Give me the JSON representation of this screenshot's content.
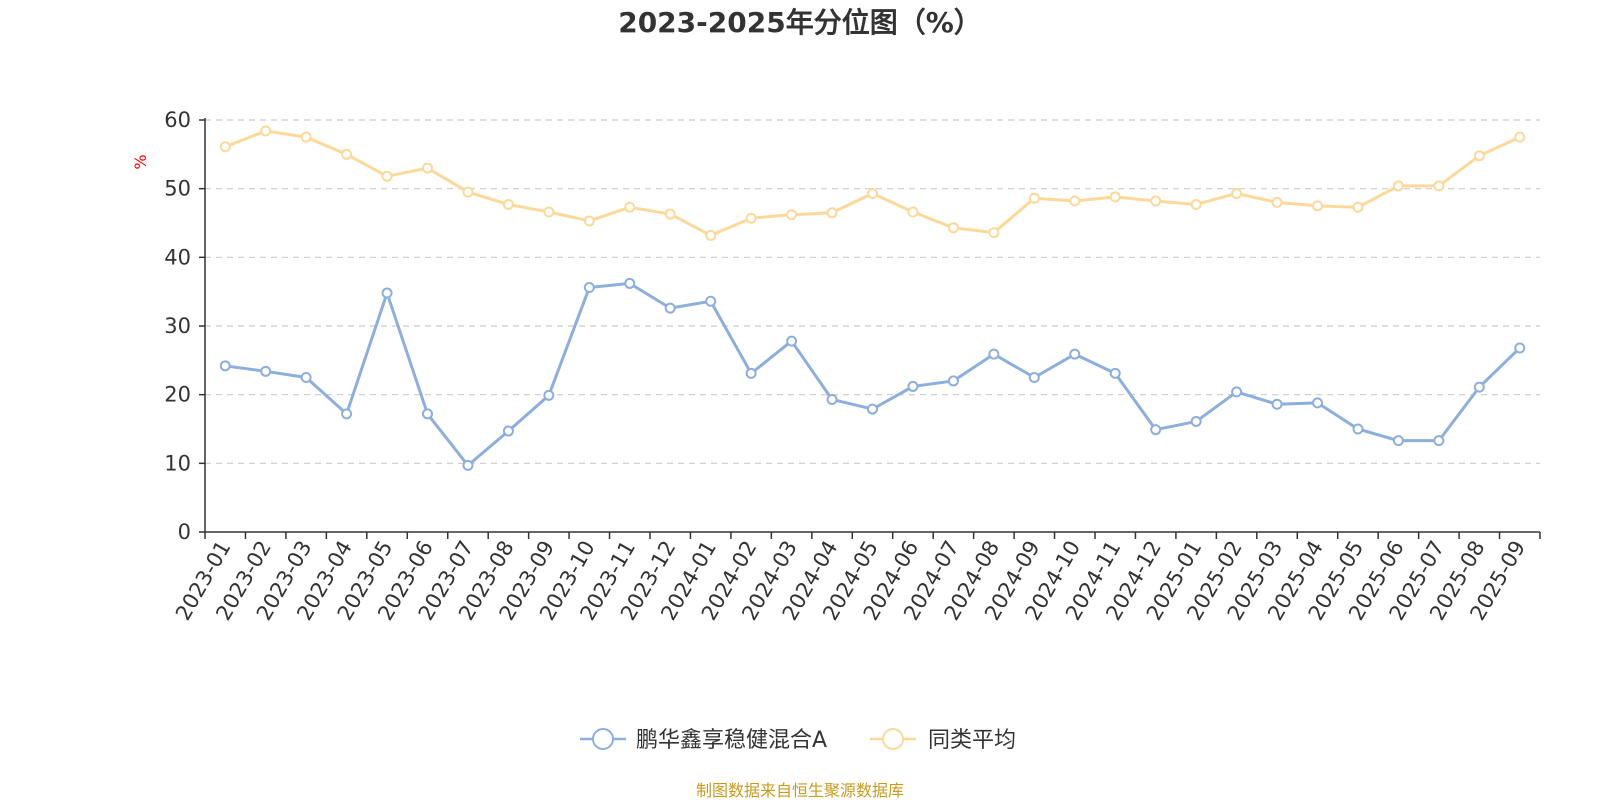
{
  "chart_data": {
    "type": "line",
    "title": "2023-2025年分位图（%）",
    "ylabel": "%",
    "ylim": [
      0,
      60
    ],
    "yticks": [
      0,
      10,
      20,
      30,
      40,
      50,
      60
    ],
    "grid": true,
    "legend_position": "bottom-center",
    "categories": [
      "2023-01",
      "2023-02",
      "2023-03",
      "2023-04",
      "2023-05",
      "2023-06",
      "2023-07",
      "2023-08",
      "2023-09",
      "2023-10",
      "2023-11",
      "2023-12",
      "2024-01",
      "2024-02",
      "2024-03",
      "2024-04",
      "2024-05",
      "2024-06",
      "2024-07",
      "2024-08",
      "2024-09",
      "2024-10",
      "2024-11",
      "2024-12",
      "2025-01",
      "2025-02",
      "2025-03",
      "2025-04",
      "2025-05",
      "2025-06",
      "2025-07",
      "2025-08",
      "2025-09"
    ],
    "series": [
      {
        "name": "鹏华鑫享稳健混合A",
        "color": "#8eaedc",
        "values": [
          24.2,
          23.4,
          22.5,
          17.2,
          34.8,
          17.2,
          9.7,
          14.7,
          19.9,
          35.6,
          36.2,
          32.6,
          33.6,
          23.1,
          27.8,
          19.3,
          17.9,
          21.2,
          22.0,
          25.9,
          22.5,
          25.9,
          23.1,
          14.9,
          16.1,
          20.4,
          18.6,
          18.8,
          15.0,
          13.3,
          13.3,
          21.1,
          26.8
        ]
      },
      {
        "name": "同类平均",
        "color": "#fcd99a",
        "values": [
          56.1,
          58.4,
          57.5,
          55.0,
          51.8,
          53.0,
          49.5,
          47.7,
          46.6,
          45.3,
          47.3,
          46.3,
          43.2,
          45.7,
          46.2,
          46.5,
          49.3,
          46.6,
          44.3,
          43.6,
          48.6,
          48.2,
          48.8,
          48.2,
          47.7,
          49.3,
          48.0,
          47.5,
          47.3,
          50.4,
          50.4,
          54.8,
          57.5
        ]
      }
    ]
  },
  "source_note": "制图数据来自恒生聚源数据库"
}
